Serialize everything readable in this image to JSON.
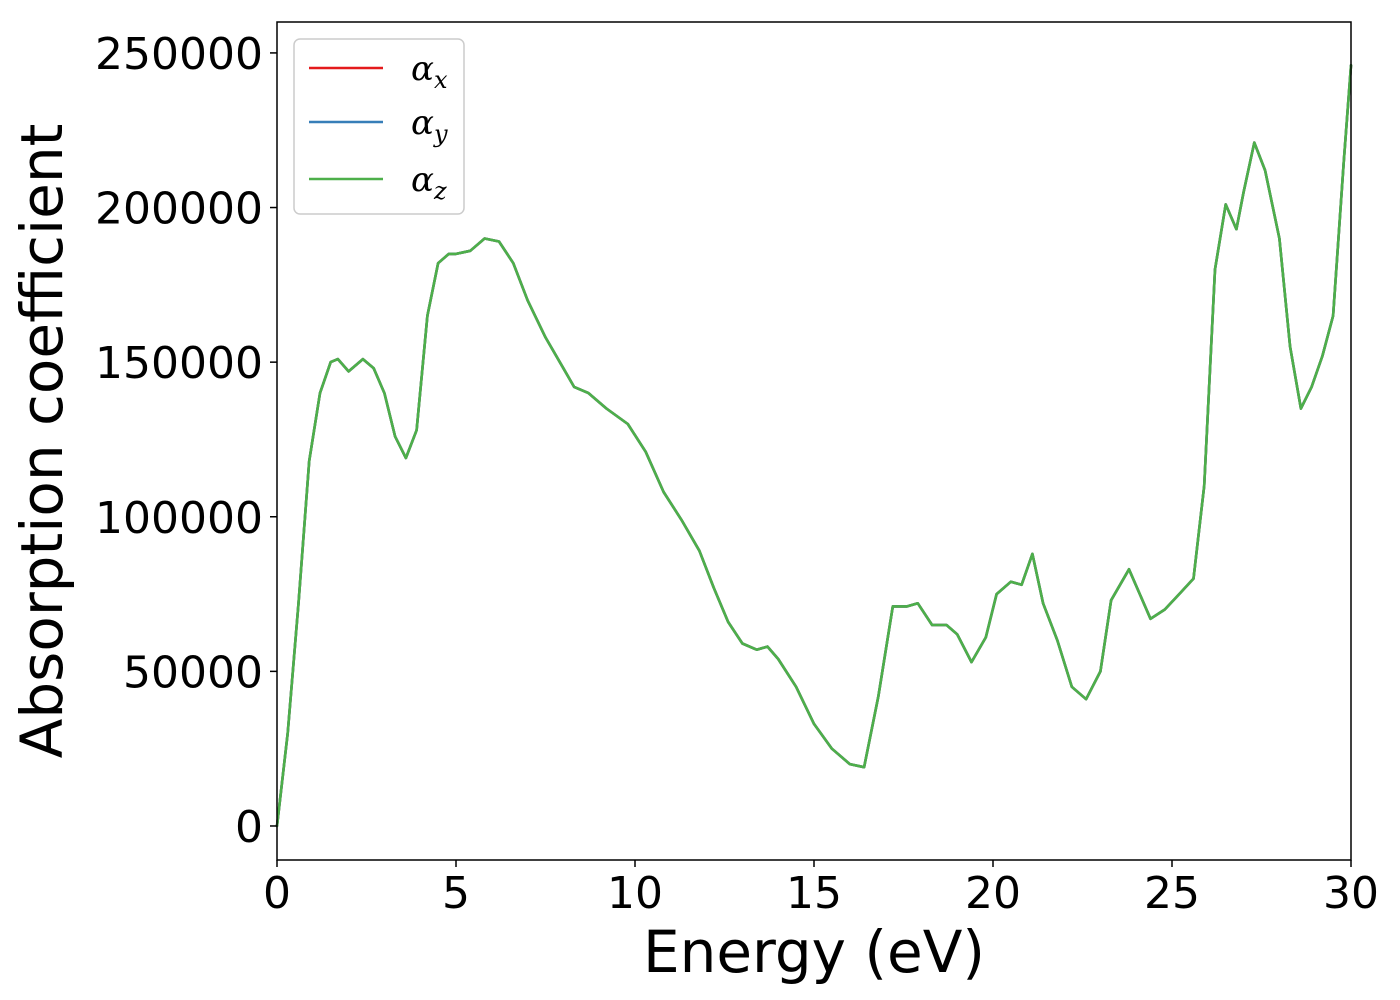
{
  "chart_data": {
    "type": "line",
    "title": "",
    "xlabel": "Energy (eV)",
    "ylabel": "Absorption coefficient",
    "xlim": [
      0,
      30
    ],
    "ylim": [
      -11000,
      260000
    ],
    "xticks": [
      0,
      5,
      10,
      15,
      20,
      25,
      30
    ],
    "xtick_labels": [
      "0",
      "5",
      "10",
      "15",
      "20",
      "25",
      "30"
    ],
    "yticks": [
      0,
      50000,
      100000,
      150000,
      200000,
      250000
    ],
    "ytick_labels": [
      "0",
      "50000",
      "100000",
      "150000",
      "200000",
      "250000"
    ],
    "grid": false,
    "legend": "top-left",
    "x": [
      0,
      0.3,
      0.6,
      0.9,
      1.2,
      1.5,
      1.7,
      2.0,
      2.4,
      2.7,
      3.0,
      3.3,
      3.6,
      3.9,
      4.2,
      4.5,
      4.8,
      5.0,
      5.4,
      5.8,
      6.2,
      6.6,
      7.0,
      7.5,
      8.0,
      8.3,
      8.7,
      9.2,
      9.8,
      10.3,
      10.8,
      11.3,
      11.8,
      12.2,
      12.6,
      13.0,
      13.4,
      13.7,
      14.0,
      14.5,
      15.0,
      15.5,
      16.0,
      16.4,
      16.8,
      17.2,
      17.6,
      17.9,
      18.3,
      18.7,
      19.0,
      19.4,
      19.8,
      20.1,
      20.5,
      20.8,
      21.1,
      21.4,
      21.8,
      22.2,
      22.6,
      23.0,
      23.3,
      23.8,
      24.1,
      24.4,
      24.8,
      25.2,
      25.6,
      25.9,
      26.2,
      26.5,
      26.8,
      27.0,
      27.3,
      27.6,
      28.0,
      28.3,
      28.6,
      28.9,
      29.2,
      29.5,
      29.8,
      30.0
    ],
    "series": [
      {
        "name": "α_x",
        "color": "#e41a1c",
        "values": [
          0,
          30000,
          72000,
          118000,
          140000,
          150000,
          151000,
          147000,
          151000,
          148000,
          140000,
          126000,
          119000,
          128000,
          165000,
          182000,
          185000,
          185000,
          186000,
          190000,
          189000,
          182000,
          170000,
          158000,
          148000,
          142000,
          140000,
          135000,
          130000,
          121000,
          108000,
          99000,
          89000,
          77000,
          66000,
          59000,
          57000,
          58000,
          54000,
          45000,
          33000,
          25000,
          20000,
          19000,
          42000,
          71000,
          71000,
          72000,
          65000,
          65000,
          62000,
          53000,
          61000,
          75000,
          79000,
          78000,
          88000,
          72000,
          60000,
          45000,
          41000,
          50000,
          73000,
          83000,
          75000,
          67000,
          70000,
          75000,
          80000,
          110000,
          180000,
          201000,
          193000,
          205000,
          221000,
          212000,
          190000,
          155000,
          135000,
          142000,
          152000,
          165000,
          215000,
          246000
        ]
      },
      {
        "name": "α_y",
        "color": "#377eb8",
        "values": [
          0,
          30000,
          72000,
          118000,
          140000,
          150000,
          151000,
          147000,
          151000,
          148000,
          140000,
          126000,
          119000,
          128000,
          165000,
          182000,
          185000,
          185000,
          186000,
          190000,
          189000,
          182000,
          170000,
          158000,
          148000,
          142000,
          140000,
          135000,
          130000,
          121000,
          108000,
          99000,
          89000,
          77000,
          66000,
          59000,
          57000,
          58000,
          54000,
          45000,
          33000,
          25000,
          20000,
          19000,
          42000,
          71000,
          71000,
          72000,
          65000,
          65000,
          62000,
          53000,
          61000,
          75000,
          79000,
          78000,
          88000,
          72000,
          60000,
          45000,
          41000,
          50000,
          73000,
          83000,
          75000,
          67000,
          70000,
          75000,
          80000,
          110000,
          180000,
          201000,
          193000,
          205000,
          221000,
          212000,
          190000,
          155000,
          135000,
          142000,
          152000,
          165000,
          215000,
          246000
        ]
      },
      {
        "name": "α_z",
        "color": "#4daf4a",
        "values": [
          0,
          30000,
          72000,
          118000,
          140000,
          150000,
          151000,
          147000,
          151000,
          148000,
          140000,
          126000,
          119000,
          128000,
          165000,
          182000,
          185000,
          185000,
          186000,
          190000,
          189000,
          182000,
          170000,
          158000,
          148000,
          142000,
          140000,
          135000,
          130000,
          121000,
          108000,
          99000,
          89000,
          77000,
          66000,
          59000,
          57000,
          58000,
          54000,
          45000,
          33000,
          25000,
          20000,
          19000,
          42000,
          71000,
          71000,
          72000,
          65000,
          65000,
          62000,
          53000,
          61000,
          75000,
          79000,
          78000,
          88000,
          72000,
          60000,
          45000,
          41000,
          50000,
          73000,
          83000,
          75000,
          67000,
          70000,
          75000,
          80000,
          110000,
          180000,
          201000,
          193000,
          205000,
          221000,
          212000,
          190000,
          155000,
          135000,
          142000,
          152000,
          165000,
          215000,
          246000
        ]
      }
    ]
  },
  "legend": {
    "items": [
      {
        "symbol": "α",
        "sub": "x"
      },
      {
        "symbol": "α",
        "sub": "y"
      },
      {
        "symbol": "α",
        "sub": "z"
      }
    ]
  }
}
